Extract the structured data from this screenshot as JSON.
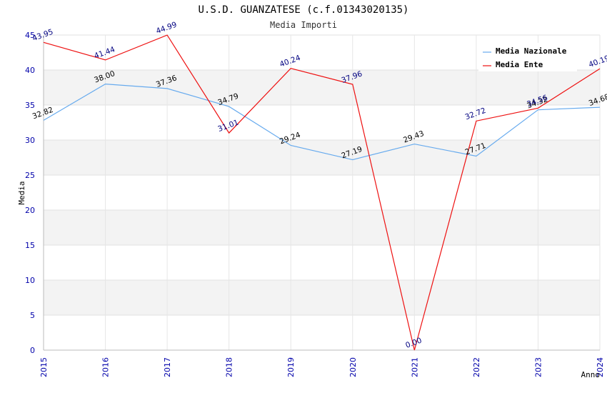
{
  "chart_data": {
    "type": "line",
    "title": "U.S.D. GUANZATESE (c.f.01343020135)",
    "subtitle": "Media Importi",
    "xlabel": "Anno",
    "ylabel": "Media",
    "x": [
      "2015",
      "2016",
      "2017",
      "2018",
      "2019",
      "2020",
      "2021",
      "2022",
      "2023",
      "2024"
    ],
    "ylim": [
      0,
      45
    ],
    "yticks": [
      0,
      5,
      10,
      15,
      20,
      25,
      30,
      35,
      40,
      45
    ],
    "grid": true,
    "legend_position": "top-right",
    "series": [
      {
        "name": "Media Nazionale",
        "color": "#66aaee",
        "values": [
          32.82,
          38.0,
          37.36,
          34.79,
          29.24,
          27.19,
          29.43,
          27.71,
          34.32,
          34.68
        ],
        "labels": [
          "32.82",
          "38.00",
          "37.36",
          "34.79",
          "29.24",
          "27.19",
          "29.43",
          "27.71",
          "34.32",
          "34.68"
        ]
      },
      {
        "name": "Media Ente",
        "color": "#ee1111",
        "values": [
          43.95,
          41.44,
          44.99,
          31.01,
          40.24,
          37.96,
          0.0,
          32.72,
          34.56,
          40.19
        ],
        "labels": [
          "43.95",
          "41.44",
          "44.99",
          "31.01",
          "40.24",
          "37.96",
          "0.00",
          "32.72",
          "34.56",
          "40.19"
        ]
      }
    ]
  }
}
